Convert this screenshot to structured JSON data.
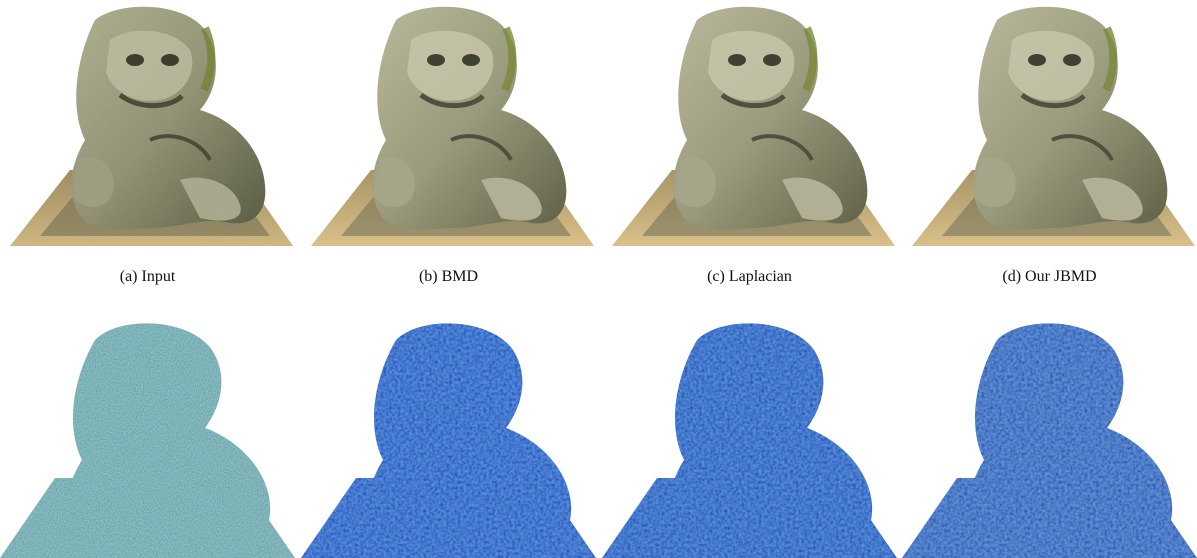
{
  "figure": {
    "captions": [
      "(a) Input",
      "(b) BMD",
      "(c) Laplacian",
      "(d) Our JBMD"
    ]
  }
}
